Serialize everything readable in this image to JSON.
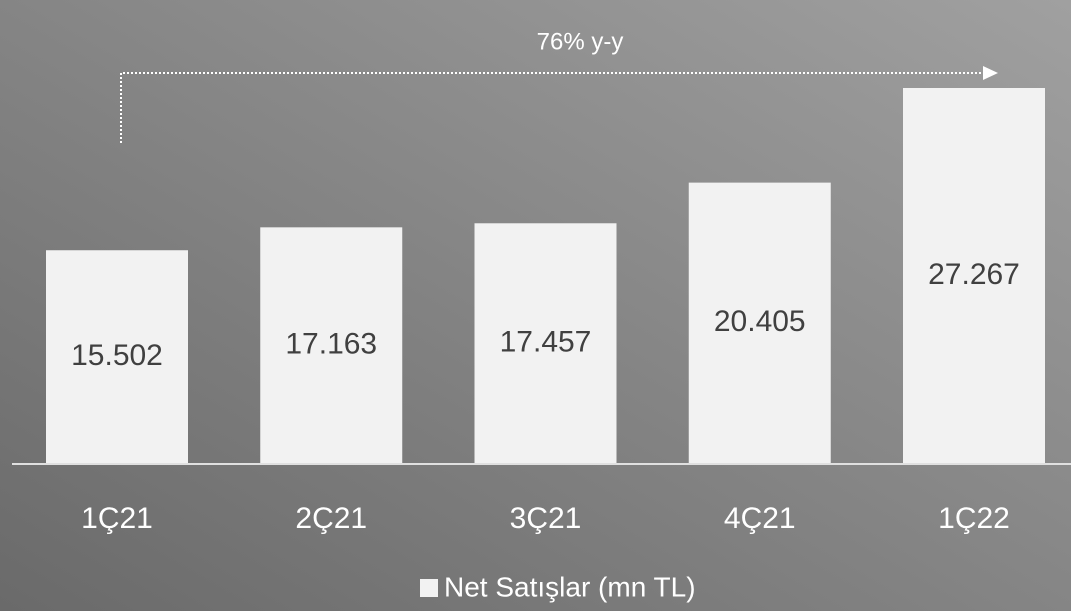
{
  "chart_data": {
    "type": "bar",
    "annotation": "76% y-y",
    "categories": [
      "1Ç21",
      "2Ç21",
      "3Ç21",
      "4Ç21",
      "1Ç22"
    ],
    "series": [
      {
        "name": "Net Satışlar (mn TL)",
        "color": "#f2f2f2",
        "values": [
          15502,
          17163,
          17457,
          20405,
          27267
        ],
        "value_labels": [
          "15.502",
          "17.163",
          "17.457",
          "20.405",
          "27.267"
        ]
      }
    ],
    "legend": "bottom"
  }
}
